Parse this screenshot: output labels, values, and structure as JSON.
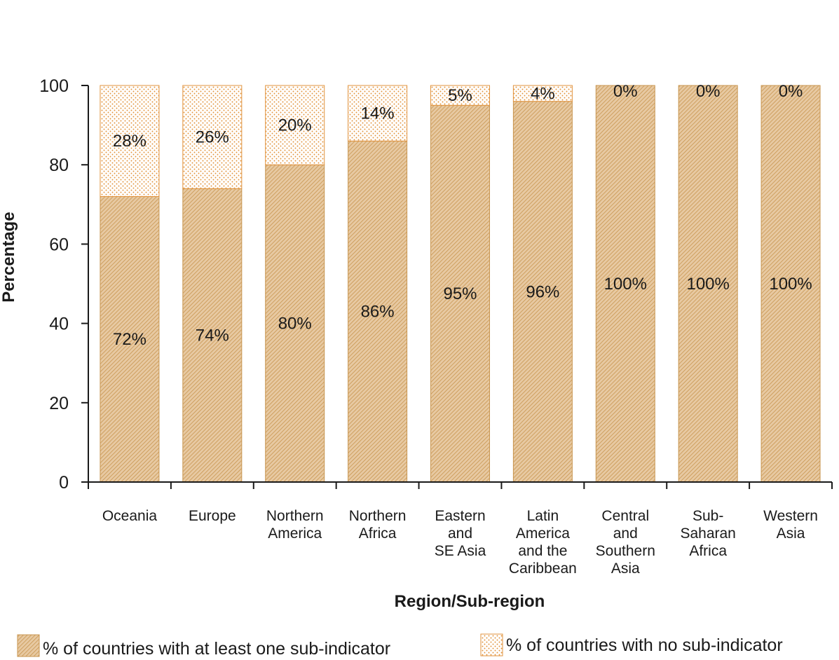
{
  "chart_data": {
    "type": "bar",
    "stacked": true,
    "xlabel": "Region/Sub-region",
    "ylabel": "Percentage",
    "ylim": [
      0,
      100
    ],
    "yticks": [
      0,
      20,
      40,
      60,
      80,
      100
    ],
    "grid": false,
    "legend_position": "bottom",
    "categories": [
      [
        "Oceania"
      ],
      [
        "Europe"
      ],
      [
        "Northern",
        "America"
      ],
      [
        "Northern",
        "Africa"
      ],
      [
        "Eastern",
        "and",
        "SE Asia"
      ],
      [
        "Latin",
        "America",
        "and the",
        "Caribbean"
      ],
      [
        "Central",
        "and",
        "Southern",
        "Asia"
      ],
      [
        "Sub-",
        "Saharan",
        "Africa"
      ],
      [
        "Western",
        "Asia"
      ]
    ],
    "series": [
      {
        "name": "% of countries with at least one sub-indicator",
        "values": [
          72,
          74,
          80,
          86,
          95,
          96,
          100,
          100,
          100
        ],
        "labels": [
          "72%",
          "74%",
          "80%",
          "86%",
          "95%",
          "96%",
          "100%",
          "100%",
          "100%"
        ],
        "pattern": "hatch",
        "color": "#c8954f"
      },
      {
        "name": "% of countries with no sub-indicator",
        "values": [
          28,
          26,
          20,
          14,
          5,
          4,
          0,
          0,
          0
        ],
        "labels": [
          "28%",
          "26%",
          "20%",
          "14%",
          "5%",
          "4%",
          "0%",
          "0%",
          "0%"
        ],
        "pattern": "dots",
        "color": "#e2933c"
      }
    ]
  }
}
